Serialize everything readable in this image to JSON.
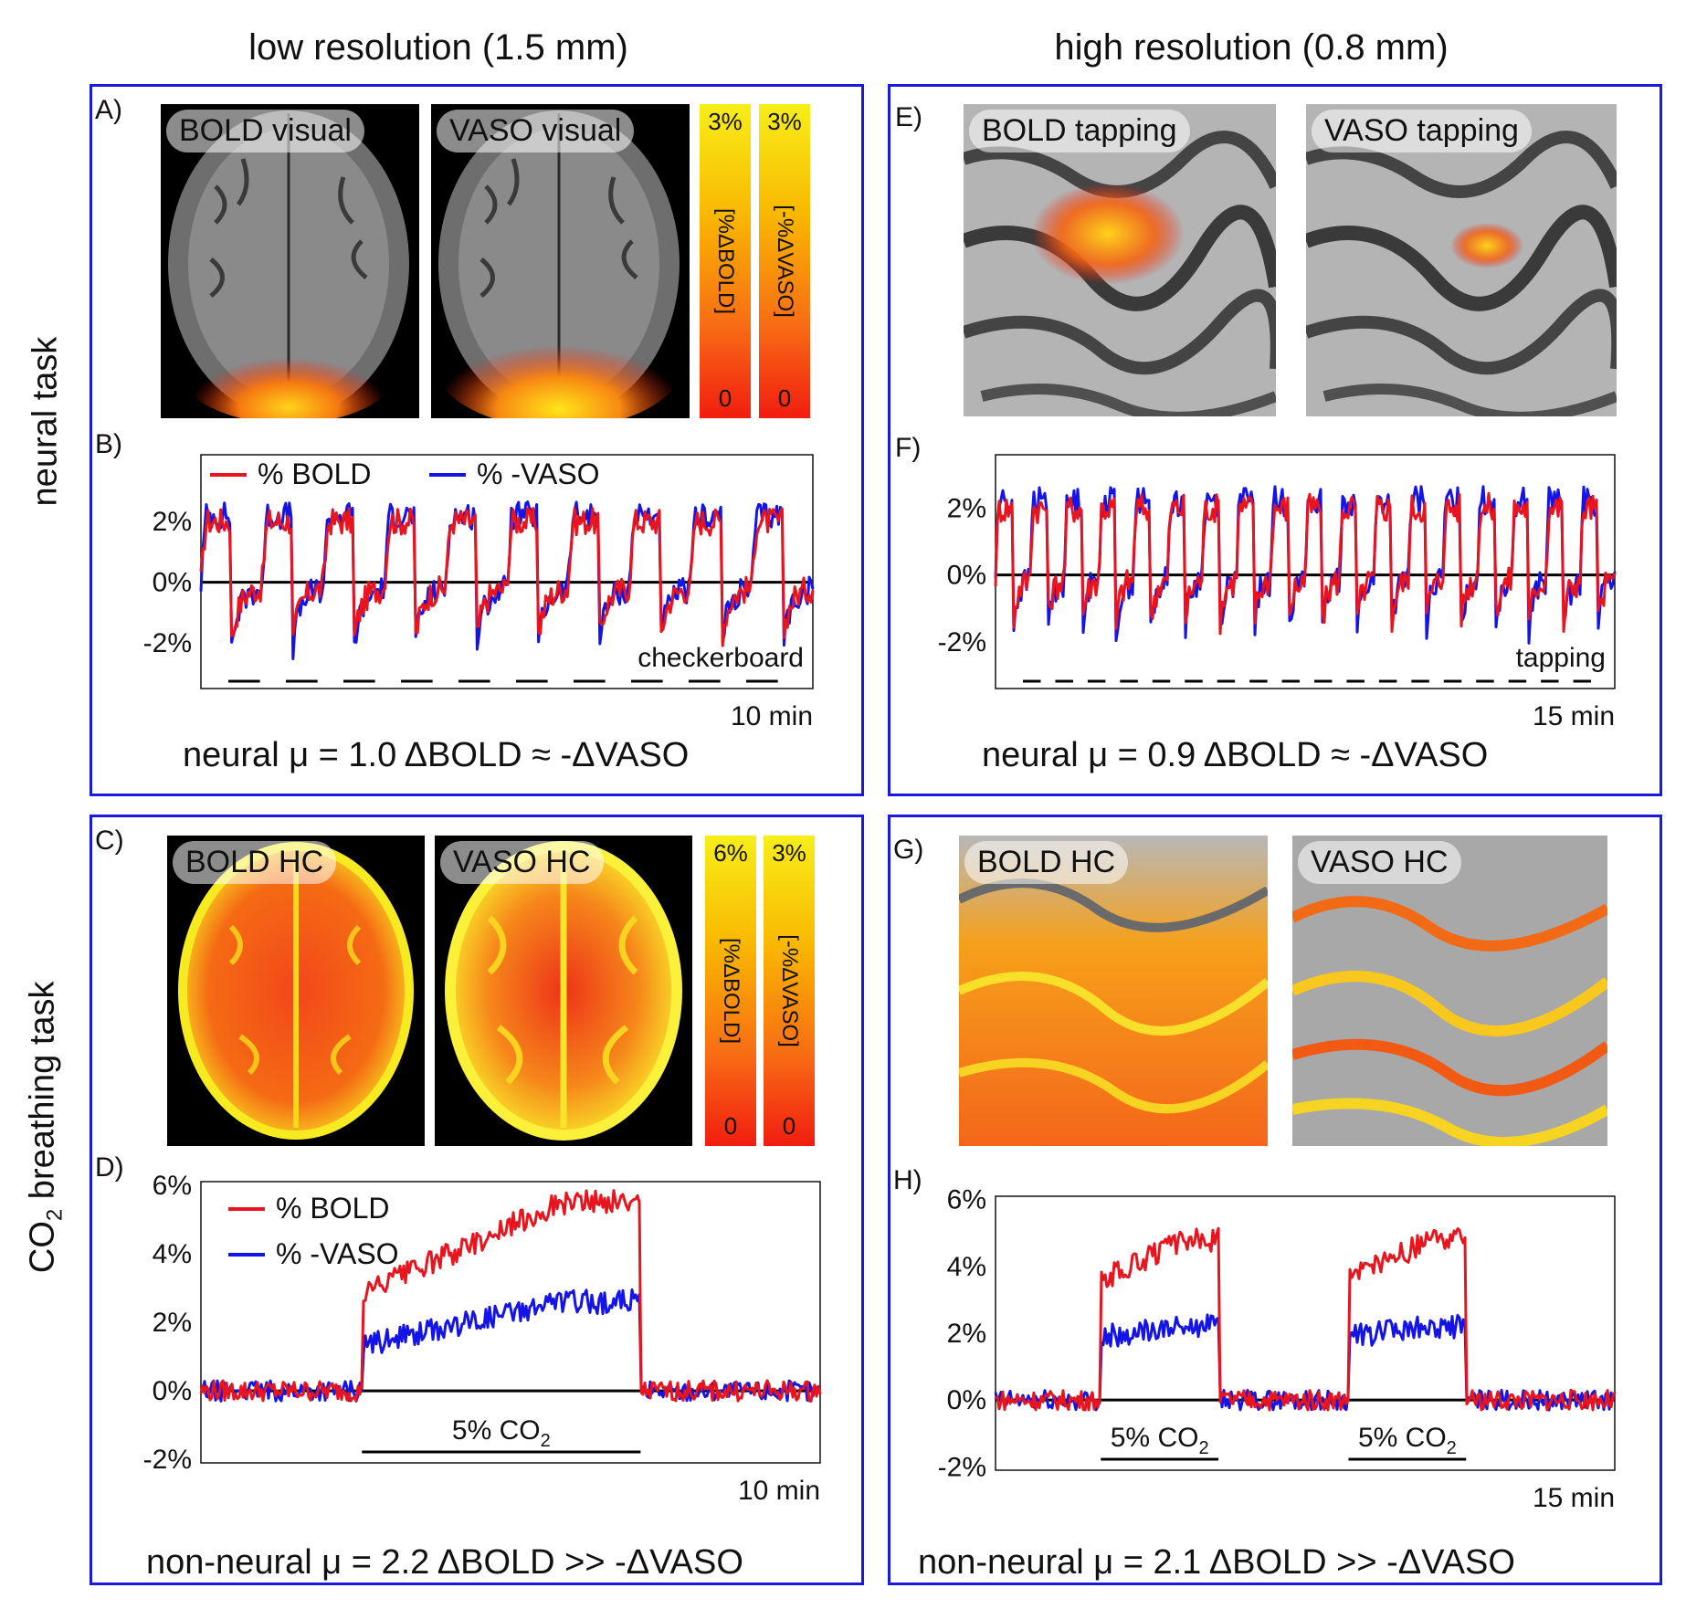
{
  "columns": {
    "left": "low resolution (1.5 mm)",
    "right": "high resolution (0.8 mm)"
  },
  "rows": {
    "top": "neural task",
    "bottom_prefix": "CO",
    "bottom_sub": "2",
    "bottom_suffix": " breathing task"
  },
  "panels": {
    "A": {
      "label": "A)",
      "img1": "BOLD visual",
      "img2": "VASO visual"
    },
    "B": {
      "label": "B)"
    },
    "C": {
      "label": "C)",
      "img1": "BOLD HC",
      "img2": "VASO HC"
    },
    "D": {
      "label": "D)"
    },
    "E": {
      "label": "E)",
      "img1": "BOLD tapping",
      "img2": "VASO tapping"
    },
    "F": {
      "label": "F)"
    },
    "G": {
      "label": "G)",
      "img1": "BOLD HC",
      "img2": "VASO HC"
    },
    "H": {
      "label": "H)"
    }
  },
  "colorbars": {
    "A_bold": {
      "max": "3%",
      "min": "0",
      "unit": "[%ΔBOLD]"
    },
    "A_vaso": {
      "max": "3%",
      "min": "0",
      "unit": "[-%ΔVASO]"
    },
    "C_bold": {
      "max": "6%",
      "min": "0",
      "unit": "[%ΔBOLD]"
    },
    "C_vaso": {
      "max": "3%",
      "min": "0",
      "unit": "[-%ΔVASO]"
    }
  },
  "captions": {
    "A": "neural  μ = 1.0 ΔBOLD ≈ -ΔVASO",
    "E": "neural  μ = 0.9 ΔBOLD ≈ -ΔVASO",
    "C": "non-neural  μ = 2.2   ΔBOLD >> -ΔVASO",
    "G": "non-neural  μ = 2.1   ΔBOLD >> -ΔVASO"
  },
  "colors": {
    "bold": "#e8141e",
    "vaso": "#1414e6",
    "frame": "#1a1adc"
  },
  "chart_data": [
    {
      "id": "B",
      "type": "line",
      "ylim": [
        -3.5,
        4.2
      ],
      "yticks": [
        2,
        0,
        -2
      ],
      "ytick_labels": [
        "2%",
        "0%",
        "-2%"
      ],
      "legend": [
        "% BOLD",
        "% -VASO"
      ],
      "legend_position": "top",
      "duration_label": "10 min",
      "stimulus_label": "checkerboard",
      "blocks": 10,
      "cycles": 10,
      "series": [
        {
          "name": "% BOLD",
          "peak": 2.0,
          "trough": -1.8
        },
        {
          "name": "% -VASO",
          "peak": 2.2,
          "trough": -2.0
        }
      ]
    },
    {
      "id": "F",
      "type": "line",
      "ylim": [
        -3.4,
        3.6
      ],
      "yticks": [
        2,
        0,
        -2
      ],
      "ytick_labels": [
        "2%",
        "0%",
        "-2%"
      ],
      "duration_label": "15 min",
      "stimulus_label": "tapping",
      "blocks": 18,
      "cycles": 18,
      "series": [
        {
          "name": "% BOLD",
          "peak": 2.0,
          "trough": -1.5
        },
        {
          "name": "% -VASO",
          "peak": 2.2,
          "trough": -1.7
        }
      ]
    },
    {
      "id": "D",
      "type": "line",
      "ylim": [
        -2.1,
        6.1
      ],
      "yticks": [
        6,
        4,
        2,
        0,
        -2
      ],
      "ytick_labels": [
        "6%",
        "4%",
        "2%",
        "0%",
        "-2%"
      ],
      "legend": [
        "% BOLD",
        "% -VASO"
      ],
      "legend_position": "top-left",
      "duration_label": "10 min",
      "stimulus": [
        {
          "label": "5% CO",
          "sub": "2",
          "start": 0.26,
          "end": 0.71
        }
      ],
      "series": [
        {
          "name": "% BOLD",
          "plateau": [
            2.8,
            5.5
          ]
        },
        {
          "name": "% -VASO",
          "plateau": [
            1.3,
            2.6
          ]
        }
      ]
    },
    {
      "id": "H",
      "type": "line",
      "ylim": [
        -2.1,
        6.1
      ],
      "yticks": [
        6,
        4,
        2,
        0,
        -2
      ],
      "ytick_labels": [
        "6%",
        "4%",
        "2%",
        "0%",
        "-2%"
      ],
      "duration_label": "15 min",
      "stimulus": [
        {
          "label": "5% CO",
          "sub": "2",
          "start": 0.17,
          "end": 0.36
        },
        {
          "label": "5% CO",
          "sub": "2",
          "start": 0.57,
          "end": 0.76
        }
      ],
      "series": [
        {
          "name": "% BOLD",
          "plateau": [
            3.6,
            4.8
          ]
        },
        {
          "name": "% -VASO",
          "plateau": [
            1.9,
            2.2
          ]
        }
      ]
    }
  ]
}
